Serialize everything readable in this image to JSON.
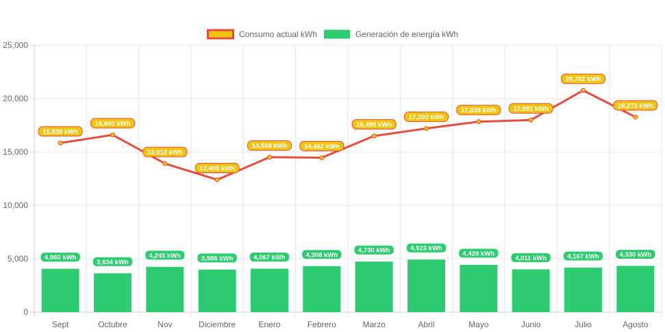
{
  "chart_data": {
    "type": "bar",
    "categories": [
      "Sept",
      "Octubre",
      "Nov",
      "Diciembre",
      "Enero",
      "Febrero",
      "Marzo",
      "Abril",
      "Mayo",
      "Junio",
      "Julio",
      "Agosto"
    ],
    "series": [
      {
        "name": "Consumo actual kWh",
        "type": "line",
        "color": "#e74c3c",
        "point_color": "#f1c40f",
        "values": [
          15839,
          16600,
          13912,
          12400,
          14508,
          14462,
          16499,
          17200,
          17839,
          17991,
          20762,
          18272
        ],
        "labels": [
          "15,839 kWh",
          "16,600 kWh",
          "13,912 kWh",
          "12,400 kWh",
          "14,508 kWh",
          "14,462 kWh",
          "16,499 kWh",
          "17,200 kWh",
          "17,839 kWh",
          "17,991 kWh",
          "20,762 kWh",
          "18,272 kWh"
        ]
      },
      {
        "name": "Generación de energía kWh",
        "type": "bar",
        "color": "#2ecc71",
        "values": [
          4060,
          3634,
          4245,
          3986,
          4067,
          4308,
          4730,
          4923,
          4429,
          4011,
          4167,
          4330
        ],
        "labels": [
          "4,060 kWh",
          "3,634 kWh",
          "4,245 kWh",
          "3,986 kWh",
          "4,067 kWh",
          "4,308 kWh",
          "4,730 kWh",
          "4,923 kWh",
          "4,429 kWh",
          "4,011 kWh",
          "4,167 kWh",
          "4,330 kWh"
        ]
      }
    ],
    "y_ticks": [
      "0",
      "5,000",
      "10,000",
      "15,000",
      "20,000",
      "25,000"
    ],
    "ylim": [
      0,
      25000
    ],
    "grid": true,
    "legend_position": "top-center",
    "title": "",
    "xlabel": "",
    "ylabel": ""
  }
}
